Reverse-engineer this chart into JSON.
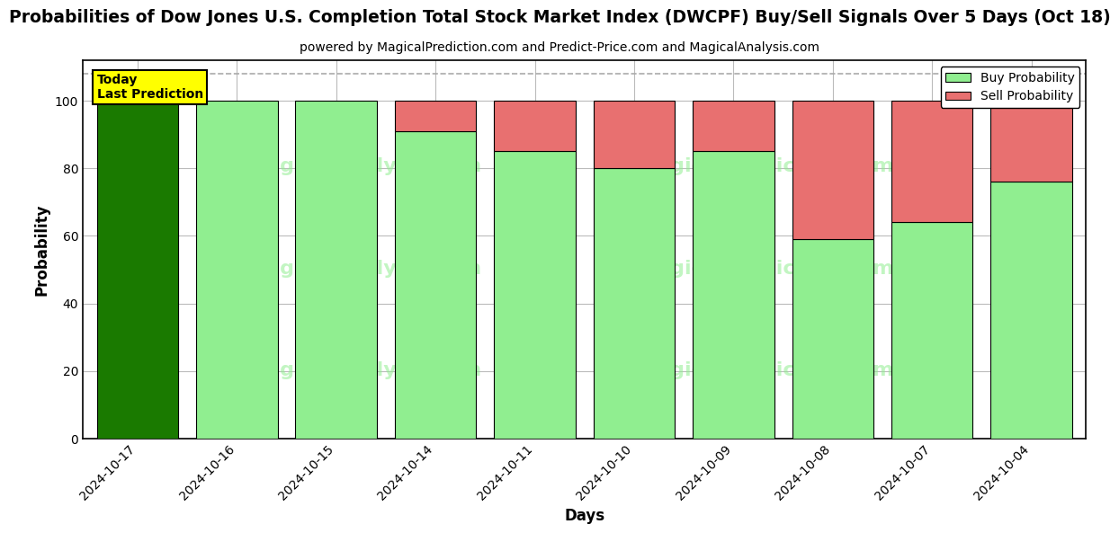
{
  "title": "Probabilities of Dow Jones U.S. Completion Total Stock Market Index (DWCPF) Buy/Sell Signals Over 5 Days (Oct 18)",
  "subtitle": "powered by MagicalPrediction.com and Predict-Price.com and MagicalAnalysis.com",
  "xlabel": "Days",
  "ylabel": "Probability",
  "categories": [
    "2024-10-17",
    "2024-10-16",
    "2024-10-15",
    "2024-10-14",
    "2024-10-11",
    "2024-10-10",
    "2024-10-09",
    "2024-10-08",
    "2024-10-07",
    "2024-10-04"
  ],
  "buy_values": [
    100,
    100,
    100,
    91,
    85,
    80,
    85,
    59,
    64,
    76
  ],
  "sell_values": [
    0,
    0,
    0,
    9,
    15,
    20,
    15,
    41,
    36,
    24
  ],
  "today_bar_color": "#1a7a00",
  "buy_color": "#90ee90",
  "sell_color": "#e87070",
  "today_annotation": "Today\nLast Prediction",
  "today_annotation_bg": "#ffff00",
  "ylim": [
    0,
    112
  ],
  "yticks": [
    0,
    20,
    40,
    60,
    80,
    100
  ],
  "grid_color": "#bbbbbb",
  "bar_edge_color": "black",
  "bar_edge_width": 0.8,
  "fig_width": 12,
  "fig_height": 6,
  "title_fontsize": 13.5,
  "subtitle_fontsize": 10,
  "axis_label_fontsize": 12,
  "tick_fontsize": 10,
  "legend_fontsize": 10,
  "dashed_line_y": 108,
  "dashed_line_color": "#aaaaaa",
  "bar_width": 0.82,
  "watermark1": "MagicalAnalysis.com",
  "watermark2": "MagicalPrediction.com",
  "wm_color": "#90ee90",
  "wm_alpha": 0.55,
  "wm_fontsize": 16
}
